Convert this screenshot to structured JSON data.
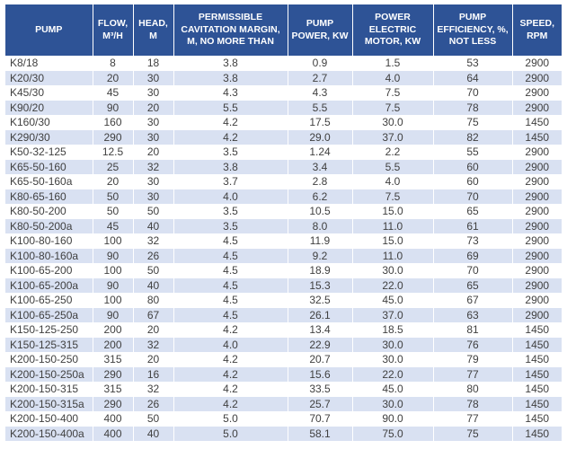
{
  "chart_data": {
    "type": "table",
    "columns": [
      "PUMP",
      "FLOW, M³/H",
      "HEAD, M",
      "PERMISSIBLE CAVITATION MARGIN, M, NO MORE THAN",
      "PUMP POWER, KW",
      "POWER ELECTRIC MOTOR, KW",
      "PUMP EFFICIENCY, %, NOT LESS",
      "SPEED, RPM"
    ],
    "rows": [
      [
        "K8/18",
        "8",
        "18",
        "3.8",
        "0.9",
        "1.5",
        "53",
        "2900"
      ],
      [
        "K20/30",
        "20",
        "30",
        "3.8",
        "2.7",
        "4.0",
        "64",
        "2900"
      ],
      [
        "K45/30",
        "45",
        "30",
        "4.3",
        "4.3",
        "7.5",
        "70",
        "2900"
      ],
      [
        "K90/20",
        "90",
        "20",
        "5.5",
        "5.5",
        "7.5",
        "78",
        "2900"
      ],
      [
        "K160/30",
        "160",
        "30",
        "4.2",
        "17.5",
        "30.0",
        "75",
        "1450"
      ],
      [
        "K290/30",
        "290",
        "30",
        "4.2",
        "29.0",
        "37.0",
        "82",
        "1450"
      ],
      [
        "K50-32-125",
        "12.5",
        "20",
        "3.5",
        "1.24",
        "2.2",
        "55",
        "2900"
      ],
      [
        "K65-50-160",
        "25",
        "32",
        "3.8",
        "3.4",
        "5.5",
        "60",
        "2900"
      ],
      [
        "K65-50-160a",
        "20",
        "30",
        "3.7",
        "2.8",
        "4.0",
        "60",
        "2900"
      ],
      [
        "K80-65-160",
        "50",
        "30",
        "4.0",
        "6.2",
        "7.5",
        "70",
        "2900"
      ],
      [
        "K80-50-200",
        "50",
        "50",
        "3.5",
        "10.5",
        "15.0",
        "65",
        "2900"
      ],
      [
        "K80-50-200a",
        "45",
        "40",
        "3.5",
        "8.0",
        "11.0",
        "61",
        "2900"
      ],
      [
        "K100-80-160",
        "100",
        "32",
        "4.5",
        "11.9",
        "15.0",
        "73",
        "2900"
      ],
      [
        "K100-80-160a",
        "90",
        "26",
        "4.5",
        "9.2",
        "11.0",
        "69",
        "2900"
      ],
      [
        "K100-65-200",
        "100",
        "50",
        "4.5",
        "18.9",
        "30.0",
        "70",
        "2900"
      ],
      [
        "K100-65-200a",
        "90",
        "40",
        "4.5",
        "15.3",
        "22.0",
        "65",
        "2900"
      ],
      [
        "K100-65-250",
        "100",
        "80",
        "4.5",
        "32.5",
        "45.0",
        "67",
        "2900"
      ],
      [
        "K100-65-250a",
        "90",
        "67",
        "4.5",
        "26.1",
        "37.0",
        "63",
        "2900"
      ],
      [
        "K150-125-250",
        "200",
        "20",
        "4.2",
        "13.4",
        "18.5",
        "81",
        "1450"
      ],
      [
        "K150-125-315",
        "200",
        "32",
        "4.0",
        "22.9",
        "30.0",
        "76",
        "1450"
      ],
      [
        "K200-150-250",
        "315",
        "20",
        "4.2",
        "20.7",
        "30.0",
        "79",
        "1450"
      ],
      [
        "K200-150-250a",
        "290",
        "16",
        "4.2",
        "15.6",
        "22.0",
        "77",
        "1450"
      ],
      [
        "K200-150-315",
        "315",
        "32",
        "4.2",
        "33.5",
        "45.0",
        "80",
        "1450"
      ],
      [
        "K200-150-315a",
        "290",
        "26",
        "4.2",
        "25.7",
        "30.0",
        "78",
        "1450"
      ],
      [
        "K200-150-400",
        "400",
        "50",
        "5.0",
        "70.7",
        "90.0",
        "77",
        "1450"
      ],
      [
        "K200-150-400a",
        "400",
        "40",
        "5.0",
        "58.1",
        "75.0",
        "75",
        "1450"
      ]
    ],
    "layout": {
      "banded_rows": true,
      "first_column_align": "left",
      "other_columns_align": "center"
    }
  },
  "colors": {
    "header_bg": "#2E5396",
    "header_text": "#FFFFFF",
    "band_bg": "#D9E1F2",
    "row_bg": "#FFFFFF",
    "body_text": "#404040"
  }
}
